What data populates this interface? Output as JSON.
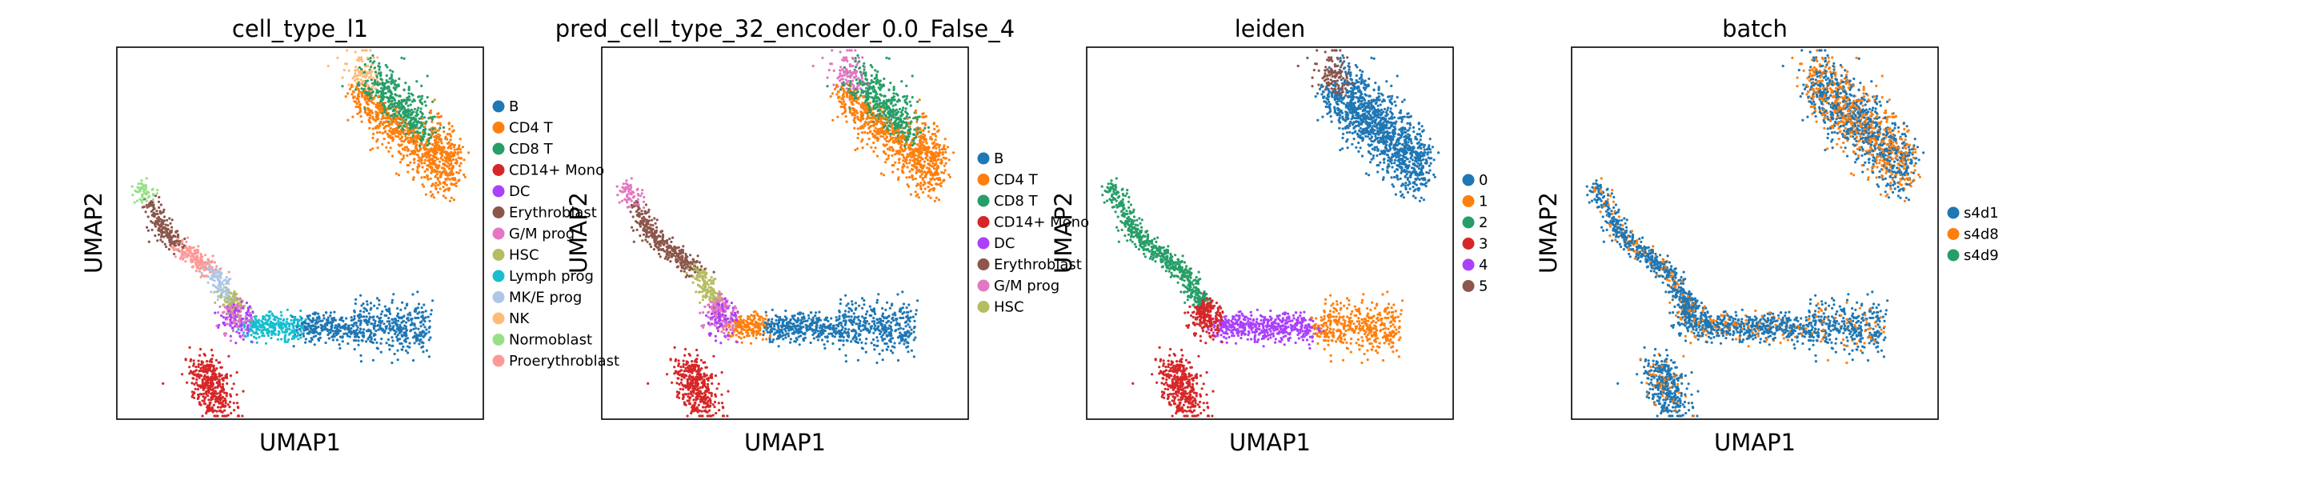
{
  "figure": {
    "palette": [
      "#1f77b4",
      "#ff7f0e",
      "#279e68",
      "#d62728",
      "#aa40fc",
      "#8c564b",
      "#e377c2",
      "#b5bd61",
      "#17becf",
      "#aec7e8",
      "#ffbb78",
      "#98df8a",
      "#ff9896"
    ]
  },
  "chart_data": [
    {
      "type": "scatter",
      "title": "cell_type_l1",
      "xlabel": "UMAP1",
      "ylabel": "UMAP2",
      "grid": false,
      "ticks": false,
      "legend_position": "right",
      "colored_by": "cell_type_l1",
      "series": [
        {
          "name": "B",
          "color": "#1f77b4",
          "region": "right arm cluster"
        },
        {
          "name": "CD4 T",
          "color": "#ff7f0e",
          "region": "top-right cluster, lower part"
        },
        {
          "name": "CD8 T",
          "color": "#279e68",
          "region": "top-right cluster, upper part"
        },
        {
          "name": "CD14+ Mono",
          "color": "#d62728",
          "region": "bottom-left lobe"
        },
        {
          "name": "DC",
          "color": "#aa40fc",
          "region": "junction"
        },
        {
          "name": "Erythroblast",
          "color": "#8c564b",
          "region": "upper-left tail"
        },
        {
          "name": "G/M prog",
          "color": "#e377c2",
          "region": "junction"
        },
        {
          "name": "HSC",
          "color": "#b5bd61",
          "region": "stem"
        },
        {
          "name": "Lymph prog",
          "color": "#17becf",
          "region": "right arm base"
        },
        {
          "name": "MK/E prog",
          "color": "#aec7e8",
          "region": "stem"
        },
        {
          "name": "NK",
          "color": "#ffbb78",
          "region": "top-right cluster, left edge"
        },
        {
          "name": "Normoblast",
          "color": "#98df8a",
          "region": "upper-left tip"
        },
        {
          "name": "Proerythroblast",
          "color": "#ff9896",
          "region": "upper-left tail"
        }
      ]
    },
    {
      "type": "scatter",
      "title": "pred_cell_type_32_encoder_0.0_False_4",
      "xlabel": "UMAP1",
      "ylabel": "UMAP2",
      "grid": false,
      "ticks": false,
      "legend_position": "right",
      "colored_by": "pred_cell_type_32_encoder_0.0_False_4",
      "series": [
        {
          "name": "B",
          "color": "#1f77b4"
        },
        {
          "name": "CD4 T",
          "color": "#ff7f0e"
        },
        {
          "name": "CD8 T",
          "color": "#279e68"
        },
        {
          "name": "CD14+ Mono",
          "color": "#d62728"
        },
        {
          "name": "DC",
          "color": "#aa40fc"
        },
        {
          "name": "Erythroblast",
          "color": "#8c564b"
        },
        {
          "name": "G/M prog",
          "color": "#e377c2"
        },
        {
          "name": "HSC",
          "color": "#b5bd61"
        }
      ]
    },
    {
      "type": "scatter",
      "title": "leiden",
      "xlabel": "UMAP1",
      "ylabel": "UMAP2",
      "grid": false,
      "ticks": false,
      "legend_position": "right",
      "colored_by": "leiden",
      "series": [
        {
          "name": "0",
          "color": "#1f77b4"
        },
        {
          "name": "1",
          "color": "#ff7f0e"
        },
        {
          "name": "2",
          "color": "#279e68"
        },
        {
          "name": "3",
          "color": "#d62728"
        },
        {
          "name": "4",
          "color": "#aa40fc"
        },
        {
          "name": "5",
          "color": "#8c564b"
        }
      ]
    },
    {
      "type": "scatter",
      "title": "batch",
      "xlabel": "UMAP1",
      "ylabel": "UMAP2",
      "grid": false,
      "ticks": false,
      "legend_position": "right",
      "colored_by": "batch",
      "series": [
        {
          "name": "s4d1",
          "color": "#1f77b4"
        },
        {
          "name": "s4d8",
          "color": "#ff7f0e"
        },
        {
          "name": "s4d9",
          "color": "#279e68"
        }
      ]
    }
  ]
}
